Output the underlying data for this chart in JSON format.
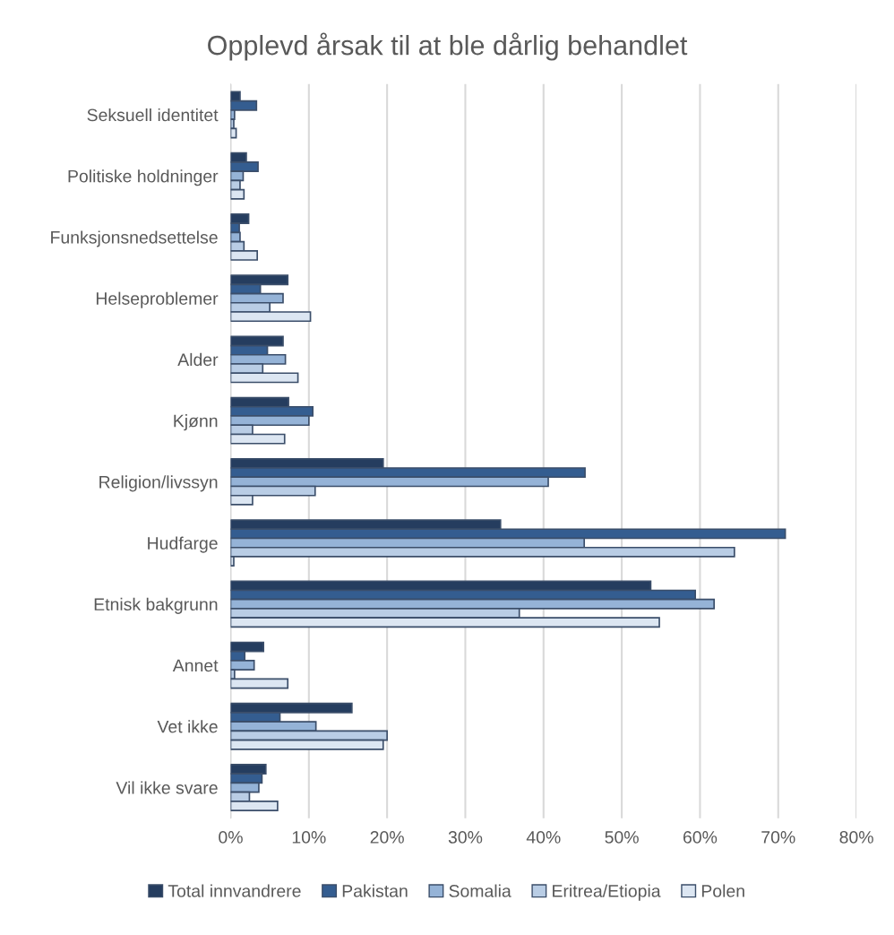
{
  "chart_data": {
    "type": "bar",
    "orientation": "horizontal",
    "title": "Opplevd årsak til at ble dårlig behandlet",
    "categories": [
      "Seksuell identitet",
      "Politiske holdninger",
      "Funksjonsnedsettelse",
      "Helseproblemer",
      "Alder",
      "Kjønn",
      "Religion/livssyn",
      "Hudfarge",
      "Etnisk bakgrunn",
      "Annet",
      "Vet ikke",
      "Vil ikke svare"
    ],
    "series": [
      {
        "name": "Total innvandrere",
        "color": "#253d5f",
        "values": [
          0.012,
          0.02,
          0.023,
          0.073,
          0.067,
          0.074,
          0.195,
          0.345,
          0.537,
          0.042,
          0.155,
          0.045
        ]
      },
      {
        "name": "Pakistan",
        "color": "#345d90",
        "values": [
          0.033,
          0.035,
          0.011,
          0.038,
          0.047,
          0.105,
          0.453,
          0.709,
          0.594,
          0.018,
          0.063,
          0.04
        ]
      },
      {
        "name": "Somalia",
        "color": "#95b3d7",
        "values": [
          0.005,
          0.016,
          0.012,
          0.067,
          0.07,
          0.1,
          0.406,
          0.452,
          0.618,
          0.03,
          0.109,
          0.036
        ]
      },
      {
        "name": "Eritrea/Etiopia",
        "color": "#b9cde5",
        "values": [
          0.004,
          0.012,
          0.017,
          0.05,
          0.041,
          0.028,
          0.108,
          0.644,
          0.369,
          0.005,
          0.2,
          0.024
        ]
      },
      {
        "name": "Polen",
        "color": "#dce6f2",
        "values": [
          0.007,
          0.017,
          0.034,
          0.102,
          0.086,
          0.069,
          0.028,
          0.004,
          0.548,
          0.073,
          0.195,
          0.06
        ]
      }
    ],
    "xlim": [
      0,
      0.8
    ],
    "xticks": [
      {
        "value": 0,
        "label": "0%"
      },
      {
        "value": 0.1,
        "label": "10%"
      },
      {
        "value": 0.2,
        "label": "20%"
      },
      {
        "value": 0.3,
        "label": "30%"
      },
      {
        "value": 0.4,
        "label": "40%"
      },
      {
        "value": 0.5,
        "label": "50%"
      },
      {
        "value": 0.6,
        "label": "60%"
      },
      {
        "value": 0.7,
        "label": "70%"
      },
      {
        "value": 0.8,
        "label": "80%"
      }
    ],
    "grid": "x",
    "legend": "bottom"
  }
}
